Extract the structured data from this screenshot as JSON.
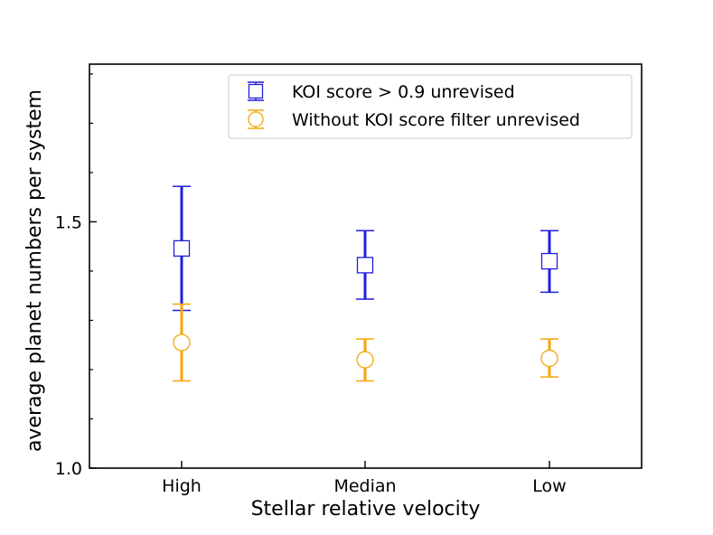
{
  "chart_data": {
    "type": "scatter",
    "title": "",
    "xlabel": "Stellar relative velocity",
    "ylabel": "average planet numbers per system",
    "categories": [
      "High",
      "Median",
      "Low"
    ],
    "ylim": [
      1.0,
      1.82
    ],
    "yticks": [
      {
        "value": 1.0,
        "label": "1.0"
      },
      {
        "value": 1.5,
        "label": "1.5"
      }
    ],
    "y_minor_ticks": [
      1.1,
      1.2,
      1.3,
      1.4,
      1.6,
      1.7,
      1.8
    ],
    "grid": false,
    "legend_position": "top-right",
    "series": [
      {
        "name": "KOI score > 0.9 unrevised",
        "marker": "square",
        "color": "#1f1fdc",
        "values": [
          1.446,
          1.412,
          1.42
        ],
        "err_low": [
          1.32,
          1.343,
          1.357
        ],
        "err_high": [
          1.572,
          1.482,
          1.482
        ]
      },
      {
        "name": "Without KOI score filter unrevised",
        "marker": "circle",
        "color": "#f5a60a",
        "values": [
          1.255,
          1.22,
          1.223
        ],
        "err_low": [
          1.177,
          1.177,
          1.185
        ],
        "err_high": [
          1.333,
          1.262,
          1.262
        ]
      }
    ]
  }
}
